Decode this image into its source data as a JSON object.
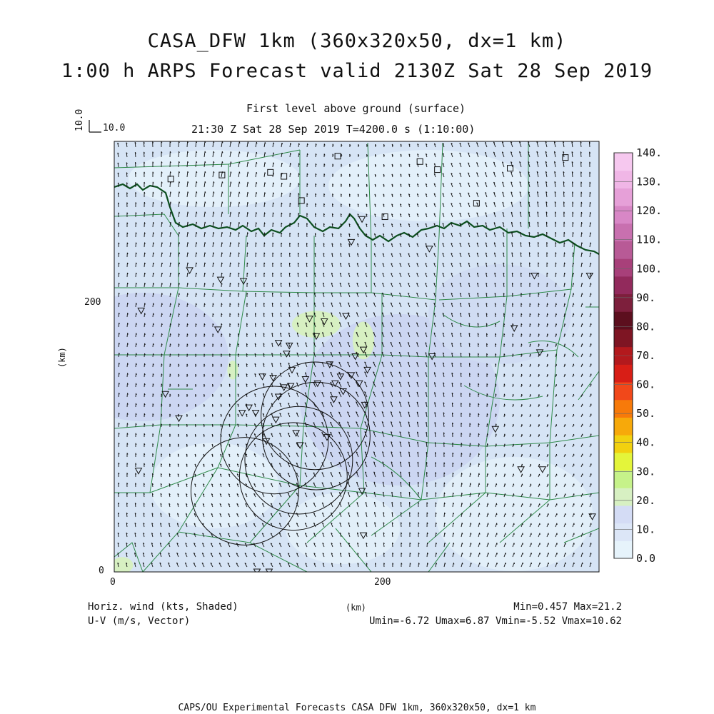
{
  "title_line1": "CASA_DFW 1km (360x320x50, dx=1 km)",
  "title_line2": "1:00 h ARPS Forecast valid 2130Z Sat 28 Sep 2019",
  "subtitle_level": "First level above ground (surface)",
  "subtitle_time": "21:30 Z Sat 28 Sep 2019   T=4200.0 s (1:10:00)",
  "ref_vector": {
    "vertical_label": "10.0",
    "horizontal_label": "10.0"
  },
  "axes": {
    "x_unit": "(km)",
    "y_unit": "(km)",
    "x_ticks": [
      {
        "label": "0",
        "value": 0
      },
      {
        "label": "200",
        "value": 200
      }
    ],
    "y_ticks": [
      {
        "label": "0",
        "value": 0
      },
      {
        "label": "200",
        "value": 200
      }
    ],
    "x_range": [
      0,
      360
    ],
    "y_range": [
      0,
      320
    ]
  },
  "colorbar": {
    "labels": [
      "0.0",
      "10.",
      "20.",
      "30.",
      "40.",
      "50.",
      "60.",
      "70.",
      "80.",
      "90.",
      "100.",
      "110.",
      "120.",
      "130.",
      "140."
    ],
    "colors": [
      "#e6f3fb",
      "#dce6f7",
      "#d4dcf5",
      "#d7f0c2",
      "#c6f28a",
      "#e4f53a",
      "#f2d10f",
      "#f7a90a",
      "#f77a0a",
      "#f1481a",
      "#d81e16",
      "#b3191d",
      "#7e1523",
      "#5c0f1e",
      "#7d1f3c",
      "#922a5c",
      "#a8407a",
      "#b85a96",
      "#c870af",
      "#d887c6",
      "#e6a0d8",
      "#f0b6e6",
      "#f6c8ef"
    ]
  },
  "labels_left": {
    "line1": "Horiz. wind (kts, Shaded)",
    "line2": "U-V (m/s, Vector)"
  },
  "stats": {
    "line1": "Min=0.457 Max=21.2",
    "line2": "Umin=-6.72 Umax=6.87 Vmin=-5.52 Vmax=10.62"
  },
  "footer": "CAPS/OU Experimental Forecasts  CASA DFW 1km, 360x320x50, dx=1 km",
  "colors": {
    "background_field": "#d6e4f5",
    "county_lines": "#2f8a4a",
    "river": "#0d4f1f",
    "vectors": "#111111",
    "marker": "#111111"
  },
  "radar_rings": [
    {
      "cx_km": 97,
      "cy_km": 60,
      "r_km": 40
    },
    {
      "cx_km": 133,
      "cy_km": 71,
      "r_km": 40
    },
    {
      "cx_km": 149,
      "cy_km": 116,
      "r_km": 40
    },
    {
      "cx_km": 150,
      "cy_km": 101,
      "r_km": 40
    },
    {
      "cx_km": 137,
      "cy_km": 83,
      "r_km": 40
    },
    {
      "cx_km": 119,
      "cy_km": 98,
      "r_km": 40
    }
  ],
  "highlight_patches": [
    {
      "x_km": 150,
      "y_km": 184,
      "rx_km": 18,
      "ry_km": 10
    },
    {
      "x_km": 185,
      "y_km": 172,
      "rx_km": 8,
      "ry_km": 14
    },
    {
      "x_km": 88,
      "y_km": 150,
      "rx_km": 4,
      "ry_km": 7
    },
    {
      "x_km": 6,
      "y_km": 5,
      "rx_km": 8,
      "ry_km": 6
    }
  ],
  "stations": [
    {
      "x_km": 156,
      "y_km": 186
    },
    {
      "x_km": 172,
      "y_km": 190
    },
    {
      "x_km": 150,
      "y_km": 175
    },
    {
      "x_km": 145,
      "y_km": 188
    },
    {
      "x_km": 130,
      "y_km": 168
    },
    {
      "x_km": 122,
      "y_km": 170
    },
    {
      "x_km": 128,
      "y_km": 162
    },
    {
      "x_km": 110,
      "y_km": 145
    },
    {
      "x_km": 118,
      "y_km": 144
    },
    {
      "x_km": 132,
      "y_km": 150
    },
    {
      "x_km": 160,
      "y_km": 154
    },
    {
      "x_km": 168,
      "y_km": 145
    },
    {
      "x_km": 176,
      "y_km": 146
    },
    {
      "x_km": 182,
      "y_km": 140
    },
    {
      "x_km": 126,
      "y_km": 137
    },
    {
      "x_km": 122,
      "y_km": 130
    },
    {
      "x_km": 100,
      "y_km": 122
    },
    {
      "x_km": 105,
      "y_km": 118
    },
    {
      "x_km": 95,
      "y_km": 118
    },
    {
      "x_km": 135,
      "y_km": 103
    },
    {
      "x_km": 158,
      "y_km": 100
    },
    {
      "x_km": 113,
      "y_km": 97
    },
    {
      "x_km": 138,
      "y_km": 94
    },
    {
      "x_km": 186,
      "y_km": 124
    },
    {
      "x_km": 48,
      "y_km": 114
    },
    {
      "x_km": 38,
      "y_km": 132
    },
    {
      "x_km": 20,
      "y_km": 194
    },
    {
      "x_km": 77,
      "y_km": 180
    },
    {
      "x_km": 56,
      "y_km": 224
    },
    {
      "x_km": 96,
      "y_km": 216
    },
    {
      "x_km": 176,
      "y_km": 245
    },
    {
      "x_km": 234,
      "y_km": 240
    },
    {
      "x_km": 312,
      "y_km": 220
    },
    {
      "x_km": 297,
      "y_km": 181
    },
    {
      "x_km": 236,
      "y_km": 160
    },
    {
      "x_km": 316,
      "y_km": 163
    },
    {
      "x_km": 283,
      "y_km": 106
    },
    {
      "x_km": 302,
      "y_km": 76
    },
    {
      "x_km": 318,
      "y_km": 76
    },
    {
      "x_km": 355,
      "y_km": 41
    },
    {
      "x_km": 184,
      "y_km": 60
    },
    {
      "x_km": 185,
      "y_km": 27
    },
    {
      "x_km": 18,
      "y_km": 75
    },
    {
      "x_km": 79,
      "y_km": 217
    },
    {
      "x_km": 115,
      "y_km": 0
    },
    {
      "x_km": 106,
      "y_km": 0
    },
    {
      "x_km": 185,
      "y_km": 165
    },
    {
      "x_km": 188,
      "y_km": 150
    },
    {
      "x_km": 179,
      "y_km": 160
    },
    {
      "x_km": 142,
      "y_km": 143
    },
    {
      "x_km": 151,
      "y_km": 140
    },
    {
      "x_km": 164,
      "y_km": 140
    },
    {
      "x_km": 131,
      "y_km": 138
    },
    {
      "x_km": 120,
      "y_km": 113
    },
    {
      "x_km": 163,
      "y_km": 128
    },
    {
      "x_km": 170,
      "y_km": 134
    },
    {
      "x_km": 184,
      "y_km": 262
    },
    {
      "x_km": 353,
      "y_km": 220
    }
  ],
  "obs_squares": [
    {
      "x_km": 166,
      "y_km": 309
    },
    {
      "x_km": 227,
      "y_km": 305
    },
    {
      "x_km": 240,
      "y_km": 299
    },
    {
      "x_km": 294,
      "y_km": 300
    },
    {
      "x_km": 335,
      "y_km": 308
    },
    {
      "x_km": 116,
      "y_km": 297
    },
    {
      "x_km": 126,
      "y_km": 294
    },
    {
      "x_km": 80,
      "y_km": 295
    },
    {
      "x_km": 42,
      "y_km": 292
    },
    {
      "x_km": 139,
      "y_km": 276
    },
    {
      "x_km": 201,
      "y_km": 264
    },
    {
      "x_km": 269,
      "y_km": 274
    }
  ]
}
